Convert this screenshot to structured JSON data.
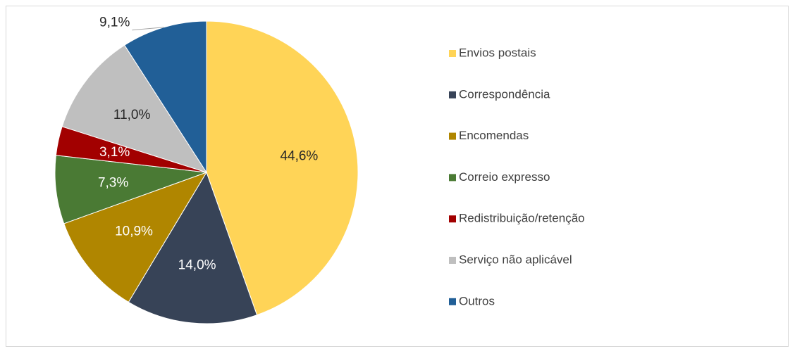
{
  "chart_data": {
    "type": "pie",
    "categories": [
      "Envios postais",
      "Correspondência",
      "Encomendas",
      "Correio expresso",
      "Redistribuição/retenção",
      "Serviço não aplicável",
      "Outros"
    ],
    "values": [
      44.6,
      14.0,
      10.9,
      7.3,
      3.1,
      11.0,
      9.1
    ],
    "value_labels": [
      "44,6%",
      "14,0%",
      "10,9%",
      "7,3%",
      "3,1%",
      "11,0%",
      "9,1%"
    ],
    "colors": [
      "#FFD457",
      "#374357",
      "#B08600",
      "#4A7A34",
      "#A20000",
      "#BFBFBF",
      "#215F97"
    ],
    "legend": "right"
  }
}
